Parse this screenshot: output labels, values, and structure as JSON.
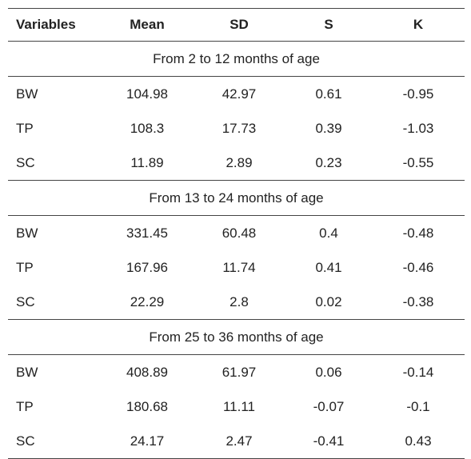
{
  "table": {
    "headers": [
      "Variables",
      "Mean",
      "SD",
      "S",
      "K"
    ],
    "groups": [
      {
        "label": "From 2 to 12 months of age",
        "rows": [
          [
            "BW",
            "104.98",
            "42.97",
            "0.61",
            "-0.95"
          ],
          [
            "TP",
            "108.3",
            "17.73",
            "0.39",
            "-1.03"
          ],
          [
            "SC",
            "11.89",
            "2.89",
            "0.23",
            "-0.55"
          ]
        ]
      },
      {
        "label": "From 13 to 24 months of age",
        "rows": [
          [
            "BW",
            "331.45",
            "60.48",
            "0.4",
            "-0.48"
          ],
          [
            "TP",
            "167.96",
            "11.74",
            "0.41",
            "-0.46"
          ],
          [
            "SC",
            "22.29",
            "2.8",
            "0.02",
            "-0.38"
          ]
        ]
      },
      {
        "label": "From 25 to 36 months of age",
        "rows": [
          [
            "BW",
            "408.89",
            "61.97",
            "0.06",
            "-0.14"
          ],
          [
            "TP",
            "180.68",
            "11.11",
            "-0.07",
            "-0.1"
          ],
          [
            "SC",
            "24.17",
            "2.47",
            "-0.41",
            "0.43"
          ]
        ]
      }
    ]
  }
}
